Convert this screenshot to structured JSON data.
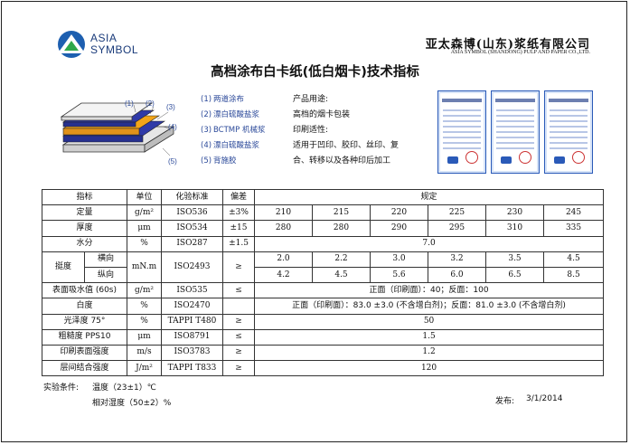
{
  "header": {
    "logo_line1": "ASIA",
    "logo_line2": "SYMBOL",
    "company_cn": "亚太森博(山东)浆纸有限公司",
    "company_en": "ASIA SYMBOL (SHANDONG) PULP AND PAPER CO.,LTD.",
    "title": "高档涂布白卡纸(低白烟卡)技术指标"
  },
  "diagram": {
    "numbers": [
      "(1)",
      "(2)",
      "(3)",
      "(4)",
      "(5)"
    ],
    "colors": {
      "top": "#f2f2f2",
      "blue": "#2f3aa8",
      "orange": "#f2a51a",
      "board": "#e8e8e8"
    }
  },
  "layers": [
    {
      "num": "(1)",
      "label": "两道涂布"
    },
    {
      "num": "(2)",
      "label": "漂白硫酸盐浆"
    },
    {
      "num": "(3)",
      "label": "BCTMP 机械浆"
    },
    {
      "num": "(4)",
      "label": "漂白硫酸盐浆"
    },
    {
      "num": "(5)",
      "label": "背施胶"
    }
  ],
  "usage": {
    "heading": "产品用途:",
    "line1": "高档的烟卡包装",
    "heading2": "印刷适性:",
    "line2": "适用于凹印、胶印、丝印、复",
    "line3": "合、转移以及各种印后加工"
  },
  "table": {
    "headers": {
      "item": "指标",
      "unit": "单位",
      "method": "化验标准",
      "tolerance": "偏差",
      "spec": "规定"
    },
    "rows": {
      "grammage": {
        "item": "定量",
        "unit": "g/m²",
        "method": "ISO536",
        "tol": "±3%",
        "values": [
          "210",
          "215",
          "220",
          "225",
          "230",
          "245"
        ]
      },
      "thickness": {
        "item": "厚度",
        "unit": "μm",
        "method": "ISO534",
        "tol": "±15",
        "values": [
          "280",
          "280",
          "290",
          "295",
          "310",
          "335"
        ]
      },
      "moisture": {
        "item": "水分",
        "unit": "%",
        "method": "ISO287",
        "tol": "±1.5",
        "value": "7.0"
      },
      "stiffness": {
        "item": "挺度",
        "sub1": "横向",
        "sub2": "纵向",
        "unit": "mN.m",
        "method": "ISO2493",
        "tol": "≥",
        "values_cd": [
          "2.0",
          "2.2",
          "3.0",
          "3.2",
          "3.5",
          "4.5"
        ],
        "values_md": [
          "4.2",
          "4.5",
          "5.6",
          "6.0",
          "6.5",
          "8.5"
        ]
      },
      "cobb": {
        "item": "表面吸水值 (60s)",
        "unit": "g/m²",
        "method": "ISO535",
        "tol": "≤",
        "value": "正面（印刷面）：40；反面：100"
      },
      "whiteness": {
        "item": "白度",
        "unit": "%",
        "method": "ISO2470",
        "tol": "",
        "value": "正面（印刷面）：83.0 ±3.0 (不含增白剂)；反面：81.0 ±3.0 (不含增白剂)"
      },
      "gloss": {
        "item": "光泽度 75°",
        "unit": "%",
        "method": "TAPPI T480",
        "tol": "≥",
        "value": "50"
      },
      "roughness": {
        "item": "粗糙度 PPS10",
        "unit": "μm",
        "method": "ISO8791",
        "tol": "≤",
        "value": "1.5"
      },
      "surface_strength": {
        "item": "印刷表面强度",
        "unit": "m/s",
        "method": "ISO3783",
        "tol": "≥",
        "value": "1.2"
      },
      "bond": {
        "item": "层间结合强度",
        "unit": "J/m²",
        "method": "TAPPI T833",
        "tol": "≥",
        "value": "120"
      }
    }
  },
  "footer": {
    "cond_label": "实验条件:",
    "temp": "温度（23±1）℃",
    "humidity": "相对湿度（50±2）%",
    "date_label": "发布:",
    "date": "3/1/2014"
  }
}
